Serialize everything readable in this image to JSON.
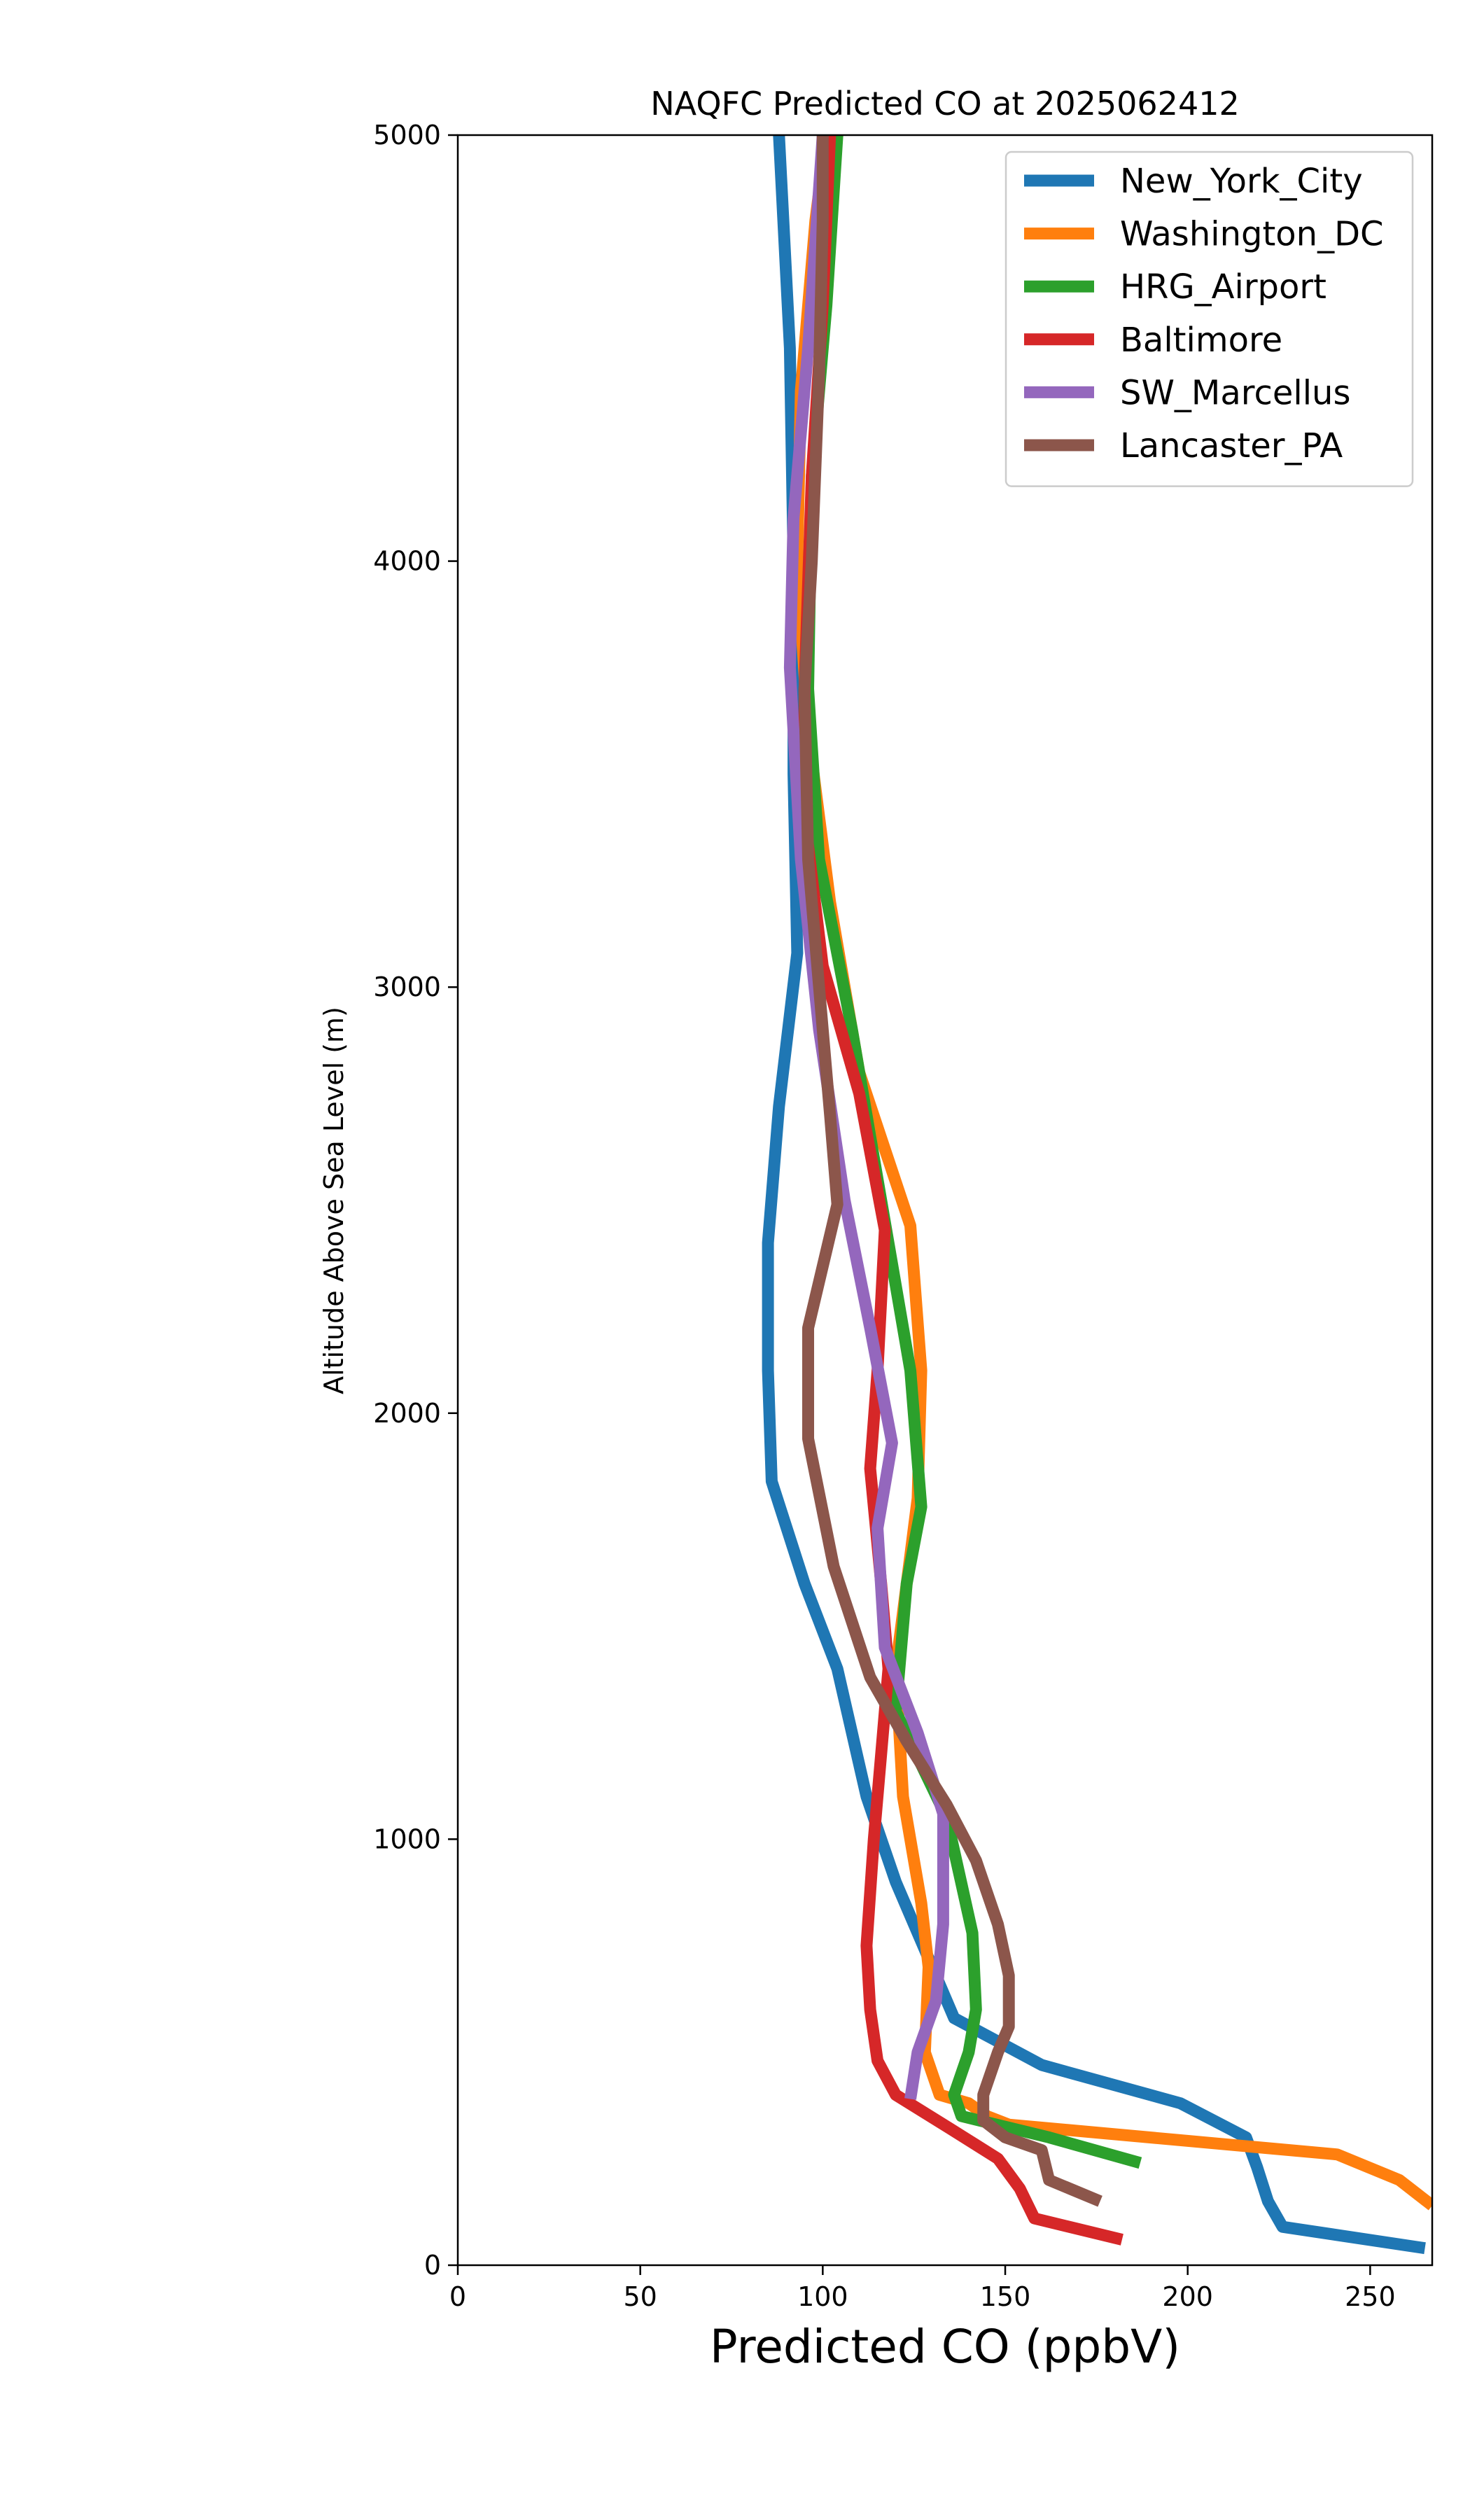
{
  "chart_data": {
    "type": "line",
    "title": "NAQFC Predicted CO at 2025062412",
    "xlabel": "Predicted CO (ppbV)",
    "ylabel": "Altitude Above Sea Level (m)",
    "xlim": [
      0,
      267
    ],
    "ylim": [
      0,
      5000
    ],
    "xticks": [
      0,
      50,
      100,
      150,
      200,
      250
    ],
    "yticks": [
      0,
      1000,
      2000,
      3000,
      4000,
      5000
    ],
    "grid": false,
    "legend_position": "top-right",
    "series": [
      {
        "name": "New_York_City",
        "color": "#1f77b4",
        "points": [
          [
            265,
            40
          ],
          [
            226,
            90
          ],
          [
            222,
            150
          ],
          [
            219,
            230
          ],
          [
            216,
            300
          ],
          [
            198,
            380
          ],
          [
            160,
            470
          ],
          [
            136,
            580
          ],
          [
            130,
            700
          ],
          [
            120,
            900
          ],
          [
            112,
            1100
          ],
          [
            104,
            1400
          ],
          [
            95,
            1600
          ],
          [
            86,
            1840
          ],
          [
            85,
            2100
          ],
          [
            85,
            2400
          ],
          [
            88,
            2720
          ],
          [
            93,
            3080
          ],
          [
            92,
            3500
          ],
          [
            92,
            4000
          ],
          [
            91,
            4500
          ],
          [
            88,
            5000
          ]
        ]
      },
      {
        "name": "Washington_DC",
        "color": "#ff7f0e",
        "points": [
          [
            267,
            140
          ],
          [
            258,
            200
          ],
          [
            241,
            260
          ],
          [
            151,
            330
          ],
          [
            145,
            350
          ],
          [
            140,
            380
          ],
          [
            132,
            400
          ],
          [
            128,
            500
          ],
          [
            129,
            700
          ],
          [
            127,
            850
          ],
          [
            122,
            1100
          ],
          [
            120,
            1400
          ],
          [
            123,
            1600
          ],
          [
            126,
            1800
          ],
          [
            127,
            2100
          ],
          [
            124,
            2440
          ],
          [
            110,
            2800
          ],
          [
            102,
            3200
          ],
          [
            96,
            3600
          ],
          [
            93,
            4000
          ],
          [
            94,
            4400
          ],
          [
            98,
            4800
          ],
          [
            101,
            5000
          ]
        ]
      },
      {
        "name": "HRG_Airport",
        "color": "#2ca02c",
        "points": [
          [
            187,
            240
          ],
          [
            162,
            300
          ],
          [
            138,
            350
          ],
          [
            136,
            400
          ],
          [
            140,
            500
          ],
          [
            142,
            600
          ],
          [
            141,
            780
          ],
          [
            134,
            1050
          ],
          [
            120,
            1300
          ],
          [
            123,
            1600
          ],
          [
            127,
            1780
          ],
          [
            124,
            2100
          ],
          [
            118,
            2400
          ],
          [
            108,
            2900
          ],
          [
            99,
            3300
          ],
          [
            96,
            3700
          ],
          [
            97,
            4200
          ],
          [
            101,
            4600
          ],
          [
            104,
            5000
          ]
        ]
      },
      {
        "name": "Baltimore",
        "color": "#d62728",
        "points": [
          [
            182,
            60
          ],
          [
            158,
            110
          ],
          [
            154,
            180
          ],
          [
            148,
            250
          ],
          [
            135,
            320
          ],
          [
            120,
            400
          ],
          [
            115,
            480
          ],
          [
            113,
            600
          ],
          [
            112,
            750
          ],
          [
            114,
            1000
          ],
          [
            116,
            1200
          ],
          [
            118,
            1400
          ],
          [
            116,
            1600
          ],
          [
            113,
            1870
          ],
          [
            115,
            2100
          ],
          [
            117,
            2430
          ],
          [
            110,
            2750
          ],
          [
            100,
            3050
          ],
          [
            95,
            3400
          ],
          [
            95,
            3700
          ],
          [
            97,
            4200
          ],
          [
            100,
            4600
          ],
          [
            102,
            5000
          ]
        ]
      },
      {
        "name": "SW_Marcellus",
        "color": "#9467bd",
        "points": [
          [
            124,
            390
          ],
          [
            126,
            500
          ],
          [
            131,
            620
          ],
          [
            133,
            800
          ],
          [
            133,
            1060
          ],
          [
            126,
            1250
          ],
          [
            117,
            1450
          ],
          [
            115,
            1730
          ],
          [
            119,
            1930
          ],
          [
            113,
            2200
          ],
          [
            106,
            2500
          ],
          [
            99,
            2900
          ],
          [
            94,
            3300
          ],
          [
            91,
            3750
          ],
          [
            92,
            4100
          ],
          [
            96,
            4500
          ],
          [
            100,
            5000
          ]
        ]
      },
      {
        "name": "Lancaster_PA",
        "color": "#8c564b",
        "points": [
          [
            176,
            150
          ],
          [
            162,
            200
          ],
          [
            160,
            270
          ],
          [
            150,
            300
          ],
          [
            144,
            340
          ],
          [
            144,
            400
          ],
          [
            148,
            500
          ],
          [
            151,
            560
          ],
          [
            151,
            680
          ],
          [
            148,
            800
          ],
          [
            142,
            950
          ],
          [
            134,
            1080
          ],
          [
            123,
            1230
          ],
          [
            113,
            1380
          ],
          [
            103,
            1640
          ],
          [
            96,
            1940
          ],
          [
            96,
            2200
          ],
          [
            104,
            2490
          ],
          [
            102,
            2700
          ],
          [
            99,
            3000
          ],
          [
            96,
            3300
          ],
          [
            95,
            3700
          ],
          [
            97,
            4000
          ],
          [
            99,
            4440
          ],
          [
            100,
            4800
          ],
          [
            100,
            5000
          ]
        ]
      }
    ]
  }
}
